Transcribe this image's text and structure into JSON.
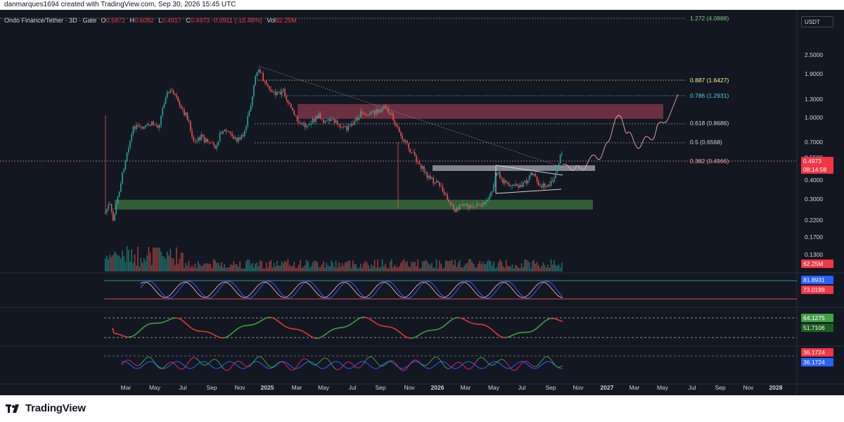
{
  "header": {
    "attribution": "danmarques1694 created with TradingView.com, Sep 30, 2026 15:45 UTC"
  },
  "symbol": {
    "name": "Ondo Finance/Tether",
    "timeframe": "3D",
    "exchange": "Gate",
    "open_label": "O",
    "open": "0.5872",
    "high_label": "H",
    "high": "0.6082",
    "low_label": "L",
    "low": "0.4917",
    "close_label": "C",
    "close": "0.4973",
    "change": "-0.0911 (-15.48%)",
    "volume_label": "Vol",
    "volume": "62.25M"
  },
  "currency_button": "USDT",
  "price_scale": [
    "2.5000",
    "1.9000",
    "1.3000",
    "1.0000",
    "0.7000",
    "0.5500",
    "0.4000",
    "0.3000",
    "0.2200",
    "0.1700",
    "0.1300"
  ],
  "fib_levels": [
    {
      "label": "1.272 (4.0888)",
      "color": "#81c784"
    },
    {
      "label": "0.887 (1.6427)",
      "color": "#fff59d"
    },
    {
      "label": "0.786 (1.2931)",
      "color": "#4dd0e1"
    },
    {
      "label": "0.618 (0.8686)",
      "color": "#d1d4dc"
    },
    {
      "label": "0.5 (0.6568)",
      "color": "#d1d4dc"
    },
    {
      "label": "0.382 (0.4966)",
      "color": "#f7a9a8"
    }
  ],
  "price_tag": {
    "price": "0.4973",
    "countdown": "08:14:58"
  },
  "volume_tag": "62.25M",
  "indicators": {
    "stoch_rsi": {
      "k": "81.8931",
      "d": "73.0199"
    },
    "rsi": {
      "a": "64.1275",
      "b": "51.7106"
    },
    "adx": {
      "a": "36.1724",
      "b": "36.1724"
    }
  },
  "time_axis": [
    "Mar",
    "May",
    "Jul",
    "Sep",
    "Nov",
    "2025",
    "Mar",
    "May",
    "Jul",
    "Sep",
    "Nov",
    "2026",
    "Mar",
    "May",
    "Jul",
    "Sep",
    "Nov",
    "2027",
    "Mar",
    "May",
    "Jul",
    "Sep",
    "Nov",
    "2028"
  ],
  "footer": {
    "brand": "TradingView"
  },
  "colors": {
    "background": "#131722",
    "up": "#26a69a",
    "down": "#ef5350",
    "resistance_zone": "#b2435a",
    "support_zone": "#3e7d3e"
  }
}
